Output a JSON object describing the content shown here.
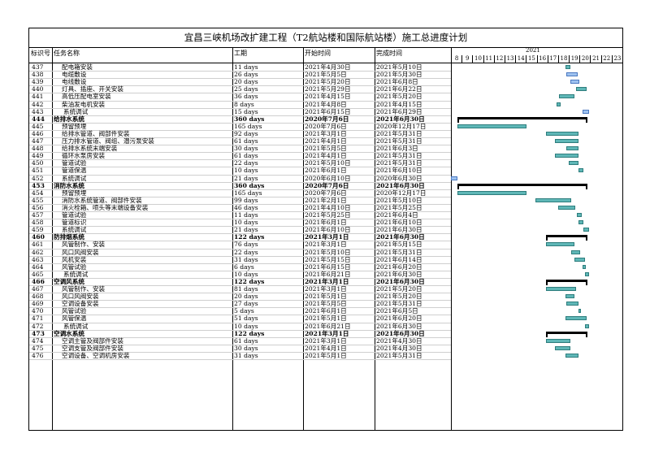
{
  "title": "宜昌三峡机场改扩建工程（T2航站楼和国际航站楼）施工总进度计划",
  "headers": {
    "id": "标识号",
    "name": "任务名称",
    "duration": "工期",
    "start": "开始时间",
    "finish": "完成时间"
  },
  "timeline": {
    "year": "2021",
    "months": [
      "8",
      "9",
      "10",
      "11",
      "12",
      "13",
      "14",
      "15",
      "16",
      "17",
      "18",
      "19",
      "20",
      "21",
      "22",
      "23"
    ]
  },
  "rows": [
    {
      "id": "437",
      "name": "配电箱安装",
      "duration": "11 days",
      "start": "2021年4月30日",
      "finish": "2021年5月10日",
      "level": 2,
      "sum": false
    },
    {
      "id": "438",
      "name": "电缆敷设",
      "duration": "26 days",
      "start": "2021年5月5日",
      "finish": "2021年5月30日",
      "level": 2,
      "sum": false
    },
    {
      "id": "439",
      "name": "电线敷设",
      "duration": "20 days",
      "start": "2021年5月20日",
      "finish": "2021年6月8日",
      "level": 2,
      "sum": false
    },
    {
      "id": "440",
      "name": "灯具、插座、开关安装",
      "duration": "25 days",
      "start": "2021年5月29日",
      "finish": "2021年6月22日",
      "level": 2,
      "sum": false
    },
    {
      "id": "441",
      "name": "高低压配电室安装",
      "duration": "36 days",
      "start": "2021年4月15日",
      "finish": "2021年5月20日",
      "level": 2,
      "sum": false
    },
    {
      "id": "442",
      "name": "柴油发电机安装",
      "duration": "8 days",
      "start": "2021年4月8日",
      "finish": "2021年4月15日",
      "level": 2,
      "sum": false
    },
    {
      "id": "443",
      "name": "系统调试",
      "duration": "15 days",
      "start": "2021年6月15日",
      "finish": "2021年6月29日",
      "level": 3,
      "sum": false
    },
    {
      "id": "444",
      "name": "给排水系统",
      "duration": "360 days",
      "start": "2020年7月6日",
      "finish": "2021年6月30日",
      "level": 1,
      "sum": true
    },
    {
      "id": "445",
      "name": "预留预埋",
      "duration": "165 days",
      "start": "2020年7月6日",
      "finish": "2020年12月17日",
      "level": 2,
      "sum": false
    },
    {
      "id": "446",
      "name": "给排水管道、阀部件安装",
      "duration": "92 days",
      "start": "2021年3月1日",
      "finish": "2021年5月31日",
      "level": 2,
      "sum": false
    },
    {
      "id": "447",
      "name": "压力排水管道、阀组、潜污泵安装",
      "duration": "61 days",
      "start": "2021年4月1日",
      "finish": "2021年5月31日",
      "level": 2,
      "sum": false
    },
    {
      "id": "448",
      "name": "给排水系统末端安装",
      "duration": "30 days",
      "start": "2021年5月5日",
      "finish": "2021年6月3日",
      "level": 2,
      "sum": false
    },
    {
      "id": "449",
      "name": "循环水泵房安装",
      "duration": "61 days",
      "start": "2021年4月1日",
      "finish": "2021年5月31日",
      "level": 2,
      "sum": false
    },
    {
      "id": "450",
      "name": "管道试验",
      "duration": "22 days",
      "start": "2021年5月10日",
      "finish": "2021年5月31日",
      "level": 2,
      "sum": false
    },
    {
      "id": "451",
      "name": "管道保温",
      "duration": "10 days",
      "start": "2021年6月1日",
      "finish": "2021年6月10日",
      "level": 2,
      "sum": false
    },
    {
      "id": "452",
      "name": "系统调试",
      "duration": "21 days",
      "start": "2020年6月10日",
      "finish": "2020年6月30日",
      "level": 2,
      "sum": false
    },
    {
      "id": "453",
      "name": "消防水系统",
      "duration": "360 days",
      "start": "2020年7月6日",
      "finish": "2021年6月30日",
      "level": 1,
      "sum": true
    },
    {
      "id": "454",
      "name": "预留预埋",
      "duration": "165 days",
      "start": "2020年7月6日",
      "finish": "2020年12月17日",
      "level": 2,
      "sum": false
    },
    {
      "id": "455",
      "name": "消防水系统管道、阀部件安装",
      "duration": "99 days",
      "start": "2021年2月1日",
      "finish": "2021年5月10日",
      "level": 2,
      "sum": false
    },
    {
      "id": "456",
      "name": "消火栓箱、喷头等末端设备安装",
      "duration": "46 days",
      "start": "2021年4月10日",
      "finish": "2021年5月25日",
      "level": 2,
      "sum": false
    },
    {
      "id": "457",
      "name": "管道试验",
      "duration": "11 days",
      "start": "2021年5月25日",
      "finish": "2021年6月4日",
      "level": 2,
      "sum": false
    },
    {
      "id": "458",
      "name": "管道标识",
      "duration": "10 days",
      "start": "2021年6月1日",
      "finish": "2021年6月10日",
      "level": 2,
      "sum": false
    },
    {
      "id": "459",
      "name": "系统调试",
      "duration": "21 days",
      "start": "2021年6月10日",
      "finish": "2021年6月30日",
      "level": 2,
      "sum": false
    },
    {
      "id": "460",
      "name": "防排烟系统",
      "duration": "122 days",
      "start": "2021年3月1日",
      "finish": "2021年6月30日",
      "level": 1,
      "sum": true
    },
    {
      "id": "461",
      "name": "风管制作、安装",
      "duration": "76 days",
      "start": "2021年3月1日",
      "finish": "2021年5月15日",
      "level": 2,
      "sum": false
    },
    {
      "id": "462",
      "name": "风口风阀安装",
      "duration": "22 days",
      "start": "2021年5月10日",
      "finish": "2021年5月31日",
      "level": 2,
      "sum": false
    },
    {
      "id": "463",
      "name": "风机安装",
      "duration": "31 days",
      "start": "2021年5月15日",
      "finish": "2021年6月14日",
      "level": 2,
      "sum": false
    },
    {
      "id": "464",
      "name": "风管试验",
      "duration": "6 days",
      "start": "2021年6月15日",
      "finish": "2021年6月20日",
      "level": 2,
      "sum": false
    },
    {
      "id": "465",
      "name": "系统调试",
      "duration": "10 days",
      "start": "2021年6月21日",
      "finish": "2021年6月30日",
      "level": 3,
      "sum": false
    },
    {
      "id": "466",
      "name": "空调风系统",
      "duration": "122 days",
      "start": "2021年3月1日",
      "finish": "2021年6月30日",
      "level": 1,
      "sum": true
    },
    {
      "id": "467",
      "name": "风管制作、安装",
      "duration": "81 days",
      "start": "2021年3月1日",
      "finish": "2021年5月20日",
      "level": 2,
      "sum": false
    },
    {
      "id": "468",
      "name": "风口风阀安装",
      "duration": "20 days",
      "start": "2021年5月1日",
      "finish": "2021年5月20日",
      "level": 2,
      "sum": false
    },
    {
      "id": "469",
      "name": "空调设备安装",
      "duration": "27 days",
      "start": "2021年5月5日",
      "finish": "2021年5月31日",
      "level": 2,
      "sum": false
    },
    {
      "id": "470",
      "name": "风管试验",
      "duration": "5 days",
      "start": "2021年6月1日",
      "finish": "2021年6月5日",
      "level": 2,
      "sum": false
    },
    {
      "id": "471",
      "name": "风管保温",
      "duration": "51 days",
      "start": "2021年5月1日",
      "finish": "2021年6月20日",
      "level": 2,
      "sum": false
    },
    {
      "id": "472",
      "name": "系统调试",
      "duration": "10 days",
      "start": "2021年6月21日",
      "finish": "2021年6月30日",
      "level": 3,
      "sum": false
    },
    {
      "id": "473",
      "name": "空调水系统",
      "duration": "122 days",
      "start": "2021年3月1日",
      "finish": "2021年6月30日",
      "level": 1,
      "sum": true
    },
    {
      "id": "474",
      "name": "空调主管及阀部件安装",
      "duration": "61 days",
      "start": "2021年3月1日",
      "finish": "2021年4月30日",
      "level": 2,
      "sum": false
    },
    {
      "id": "475",
      "name": "空调支管及阀部件安装",
      "duration": "30 days",
      "start": "2021年4月1日",
      "finish": "2021年4月30日",
      "level": 2,
      "sum": false
    },
    {
      "id": "476",
      "name": "空调设备、空调机房安装",
      "duration": "31 days",
      "start": "2021年5月1日",
      "finish": "2021年5月31日",
      "level": 2,
      "sum": false
    }
  ],
  "gantt_bars": [
    {
      "row": 0,
      "from": 0.667,
      "to": 0.698,
      "kind": "task"
    },
    {
      "row": 1,
      "from": 0.673,
      "to": 0.74,
      "kind": "blue"
    },
    {
      "row": 2,
      "from": 0.697,
      "to": 0.751,
      "kind": "blue"
    },
    {
      "row": 3,
      "from": 0.732,
      "to": 0.792,
      "kind": "task"
    },
    {
      "row": 4,
      "from": 0.631,
      "to": 0.72,
      "kind": "task"
    },
    {
      "row": 5,
      "from": 0.618,
      "to": 0.64,
      "kind": "task"
    },
    {
      "row": 6,
      "from": 0.767,
      "to": 0.806,
      "kind": "blue"
    },
    {
      "row": 7,
      "from": 0.04,
      "to": 0.798,
      "kind": "summary"
    },
    {
      "row": 8,
      "from": 0.04,
      "to": 0.439,
      "kind": "task"
    },
    {
      "row": 9,
      "from": 0.555,
      "to": 0.745,
      "kind": "task"
    },
    {
      "row": 10,
      "from": 0.608,
      "to": 0.745,
      "kind": "task"
    },
    {
      "row": 11,
      "from": 0.674,
      "to": 0.745,
      "kind": "task"
    },
    {
      "row": 12,
      "from": 0.608,
      "to": 0.745,
      "kind": "task"
    },
    {
      "row": 13,
      "from": 0.685,
      "to": 0.745,
      "kind": "task"
    },
    {
      "row": 14,
      "from": 0.745,
      "to": 0.772,
      "kind": "task"
    },
    {
      "row": 15,
      "from": 0.0,
      "to": 0.04,
      "kind": "blue"
    },
    {
      "row": 16,
      "from": 0.04,
      "to": 0.798,
      "kind": "summary"
    },
    {
      "row": 17,
      "from": 0.04,
      "to": 0.439,
      "kind": "task"
    },
    {
      "row": 18,
      "from": 0.491,
      "to": 0.702,
      "kind": "task"
    },
    {
      "row": 19,
      "from": 0.625,
      "to": 0.726,
      "kind": "task"
    },
    {
      "row": 20,
      "from": 0.735,
      "to": 0.765,
      "kind": "task"
    },
    {
      "row": 21,
      "from": 0.745,
      "to": 0.772,
      "kind": "task"
    },
    {
      "row": 22,
      "from": 0.772,
      "to": 0.806,
      "kind": "task"
    },
    {
      "row": 23,
      "from": 0.555,
      "to": 0.798,
      "kind": "summary"
    },
    {
      "row": 24,
      "from": 0.555,
      "to": 0.72,
      "kind": "task"
    },
    {
      "row": 25,
      "from": 0.702,
      "to": 0.753,
      "kind": "task"
    },
    {
      "row": 26,
      "from": 0.72,
      "to": 0.784,
      "kind": "task"
    },
    {
      "row": 27,
      "from": 0.767,
      "to": 0.785,
      "kind": "task"
    },
    {
      "row": 28,
      "from": 0.78,
      "to": 0.806,
      "kind": "task"
    },
    {
      "row": 29,
      "from": 0.555,
      "to": 0.798,
      "kind": "summary"
    },
    {
      "row": 30,
      "from": 0.555,
      "to": 0.73,
      "kind": "task"
    },
    {
      "row": 31,
      "from": 0.667,
      "to": 0.72,
      "kind": "task"
    },
    {
      "row": 32,
      "from": 0.673,
      "to": 0.745,
      "kind": "task"
    },
    {
      "row": 33,
      "from": 0.745,
      "to": 0.76,
      "kind": "task"
    },
    {
      "row": 34,
      "from": 0.667,
      "to": 0.792,
      "kind": "task"
    },
    {
      "row": 35,
      "from": 0.78,
      "to": 0.806,
      "kind": "task"
    },
    {
      "row": 36,
      "from": 0.555,
      "to": 0.798,
      "kind": "summary"
    },
    {
      "row": 37,
      "from": 0.555,
      "to": 0.698,
      "kind": "task"
    },
    {
      "row": 38,
      "from": 0.608,
      "to": 0.698,
      "kind": "task"
    },
    {
      "row": 39,
      "from": 0.667,
      "to": 0.745,
      "kind": "task"
    }
  ]
}
